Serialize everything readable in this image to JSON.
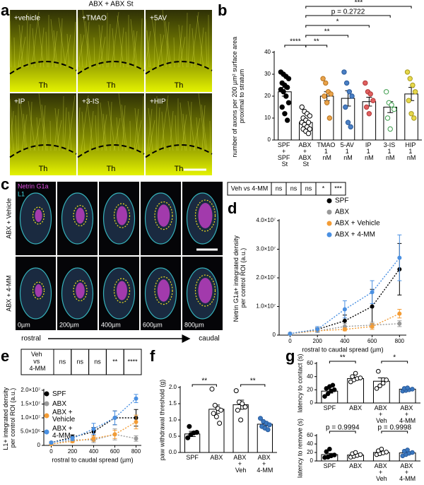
{
  "panel_a": {
    "panel": "a",
    "title": "ABX + ABX St",
    "images": [
      {
        "label": "+vehicle",
        "region": "Th"
      },
      {
        "label": "+TMAO",
        "region": "Th"
      },
      {
        "label": "+5AV",
        "region": "Th"
      },
      {
        "label": "+IP",
        "region": "Th"
      },
      {
        "label": "+3-IS",
        "region": "Th"
      },
      {
        "label": "+HIP",
        "region": "Th"
      }
    ]
  },
  "panel_c": {
    "panel": "c",
    "stains": [
      "Netrin G1a",
      "L1"
    ],
    "rows": [
      "ABX + Vehicle",
      "ABX + 4-MM"
    ],
    "positions": [
      "0µm",
      "200µm",
      "400µm",
      "600µm",
      "800µm"
    ],
    "axis_start": "rostral",
    "axis_end": "caudal"
  },
  "chart_data": [
    {
      "panel": "b",
      "type": "bar",
      "ylabel": "number of axons per 200 µm² surface area proximal to stratum",
      "categories": [
        "SPF + SPF St",
        "ABX + ABX St",
        "TMAO 1 nM",
        "5-AV 1 nM",
        "IP 1 nM",
        "3-IS 1 nM",
        "HIP 1 nM"
      ],
      "values": [
        22,
        8,
        20,
        19,
        17.5,
        15,
        21
      ],
      "errors": [
        2,
        1,
        2,
        3.5,
        2,
        2.5,
        3
      ],
      "points": [
        [
          31,
          30,
          29,
          28,
          26,
          25,
          24,
          23,
          22,
          20,
          17,
          15,
          12,
          9
        ],
        [
          15,
          13,
          12,
          11,
          10,
          9,
          8,
          8,
          7,
          6,
          5,
          5,
          4,
          3
        ],
        [
          28,
          26,
          22,
          21,
          20,
          17,
          10
        ],
        [
          31,
          26,
          22,
          20,
          15,
          8,
          6
        ],
        [
          26,
          22,
          21,
          18,
          15,
          12
        ],
        [
          22,
          17,
          16,
          14,
          10,
          5
        ],
        [
          31,
          28,
          25,
          22,
          18,
          12,
          10
        ]
      ],
      "colors": [
        "#000000",
        "#ffffff",
        "#e8a24a",
        "#4a7fc4",
        "#e06060",
        "#ffffff",
        "#e6d84a"
      ],
      "edge_colors": [
        "#000000",
        "#000000",
        "#b87420",
        "#2a5a9a",
        "#b03838",
        "#3a9b4a",
        "#a89a20"
      ],
      "ylim": [
        0,
        40
      ],
      "yticks": [
        0,
        10,
        20,
        30,
        40
      ],
      "annotations": [
        "****",
        "**",
        "**",
        "*",
        "p = 0.2722",
        "***"
      ]
    },
    {
      "panel": "d",
      "type": "line",
      "ylabel": "Netrin G1a+ integrated density per control ROI (a.u.)",
      "xlabel": "rostral to caudal spread (µm)",
      "stats_table": {
        "header": "Veh vs 4-MM",
        "cells": [
          "ns",
          "ns",
          "ns",
          "*",
          "***"
        ]
      },
      "x": [
        0,
        200,
        400,
        600,
        800
      ],
      "xlim": [
        -80,
        850
      ],
      "xticks": [
        0,
        200,
        400,
        600,
        800
      ],
      "ylim": [
        0,
        40000000
      ],
      "yticks": [
        0,
        {
          "value": 10000000,
          "label": "1.0×10⁷"
        },
        {
          "value": 20000000,
          "label": "2.0×10⁷"
        },
        {
          "value": 30000000,
          "label": "3.0×10⁷"
        },
        {
          "value": 40000000,
          "label": "4.0×10⁷"
        }
      ],
      "series": [
        {
          "name": "SPF",
          "color": "#000000",
          "values": [
            500000,
            2000000,
            5000000,
            10000000,
            23000000
          ],
          "errors": [
            200000,
            500000,
            2000000,
            6000000,
            9000000
          ]
        },
        {
          "name": "ABX",
          "color": "#999999",
          "values": [
            500000,
            1500000,
            3000000,
            3500000,
            4000000
          ],
          "errors": [
            200000,
            500000,
            1000000,
            1000000,
            1000000
          ]
        },
        {
          "name": "ABX + Vehicle",
          "color": "#f39c35",
          "values": [
            500000,
            1500000,
            2000000,
            3000000,
            7500000
          ],
          "errors": [
            200000,
            500000,
            500000,
            1000000,
            1500000
          ]
        },
        {
          "name": "ABX + 4-MM",
          "color": "#4a90e2",
          "values": [
            500000,
            2000000,
            9000000,
            15000000,
            27000000
          ],
          "errors": [
            200000,
            1000000,
            3000000,
            4000000,
            8000000
          ]
        }
      ]
    },
    {
      "panel": "e",
      "type": "line",
      "ylabel": "L1+ integrated density per control ROI (a.u.)",
      "xlabel": "rostral to caudal spread (µm)",
      "stats_table": {
        "header": "Veh vs 4-MM",
        "cells": [
          "ns",
          "ns",
          "ns",
          "**",
          "****"
        ]
      },
      "x": [
        0,
        200,
        400,
        600,
        800
      ],
      "xlim": [
        -70,
        850
      ],
      "xticks": [
        0,
        200,
        400,
        600,
        800
      ],
      "ylim": [
        0,
        20000000
      ],
      "yticks": [
        0,
        {
          "value": 5000000,
          "label": "5.0×10⁶"
        },
        {
          "value": 10000000,
          "label": "1.0×10⁷"
        },
        {
          "value": 15000000,
          "label": "1.5×10⁷"
        },
        {
          "value": 20000000,
          "label": "2.0×10⁷"
        }
      ],
      "series": [
        {
          "name": "SPF",
          "color": "#000000",
          "values": [
            1000000,
            3000000,
            5000000,
            10000000,
            10000000
          ],
          "errors": [
            300000,
            800000,
            1500000,
            2500000,
            3000000
          ]
        },
        {
          "name": "ABX",
          "color": "#999999",
          "values": [
            500000,
            2000000,
            2000000,
            4000000,
            2500000
          ],
          "errors": [
            200000,
            500000,
            1000000,
            2000000,
            1000000
          ]
        },
        {
          "name": "ABX + Vehicle",
          "color": "#f39c35",
          "values": [
            500000,
            1500000,
            2500000,
            4000000,
            8500000
          ],
          "errors": [
            200000,
            500000,
            1000000,
            1500000,
            2500000
          ]
        },
        {
          "name": "ABX + 4-MM",
          "color": "#4a90e2",
          "values": [
            1000000,
            2500000,
            6000000,
            10000000,
            17000000
          ],
          "errors": [
            300000,
            800000,
            2000000,
            2500000,
            1500000
          ]
        }
      ]
    },
    {
      "panel": "f",
      "type": "bar",
      "ylabel": "paw withdrawal threshold (g)",
      "categories": [
        "SPF",
        "ABX",
        "ABX + Veh",
        "ABX + 4-MM"
      ],
      "values": [
        0.57,
        1.33,
        1.47,
        0.87
      ],
      "errors": [
        0.08,
        0.13,
        0.14,
        0.05
      ],
      "points": [
        [
          0.45,
          0.55,
          0.6,
          0.62,
          0.8
        ],
        [
          1.95,
          1.45,
          1.35,
          1.3,
          1.2,
          1.1,
          0.9
        ],
        [
          1.9,
          1.55,
          1.5,
          1.4,
          1.3,
          1.0
        ],
        [
          1.05,
          0.95,
          0.9,
          0.85,
          0.8,
          0.75,
          0.7
        ]
      ],
      "colors": [
        "#000000",
        "#ffffff",
        "#ffffff",
        "#3a78c0"
      ],
      "edge_colors": [
        "#000000",
        "#000000",
        "#000000",
        "#2a5a9a"
      ],
      "ylim": [
        0,
        2
      ],
      "yticks": [
        {
          "value": 0,
          "label": "0.0"
        },
        0.5,
        {
          "value": 1,
          "label": "1.0"
        },
        1.5,
        {
          "value": 2,
          "label": "2.0"
        }
      ],
      "annotations": [
        "**",
        "**"
      ]
    },
    {
      "panel": "g",
      "type": "bar",
      "ylabel": "latency to contact (s)",
      "categories": [
        "SPF",
        "ABX",
        "ABX + Veh",
        "ABX + 4-MM"
      ],
      "values": [
        18,
        37,
        33,
        21
      ],
      "errors": [
        3,
        2,
        5,
        1
      ],
      "points": [
        [
          10,
          14,
          18,
          20,
          22,
          25,
          27
        ],
        [
          32,
          35,
          37,
          38,
          40,
          45
        ],
        [
          22,
          26,
          30,
          35,
          48
        ],
        [
          18,
          19,
          20,
          21,
          22,
          23
        ]
      ],
      "colors": [
        "#000000",
        "#ffffff",
        "#ffffff",
        "#3a78c0"
      ],
      "edge_colors": [
        "#000000",
        "#000000",
        "#000000",
        "#2a5a9a"
      ],
      "ylim": [
        0,
        60
      ],
      "yticks": [
        0,
        20,
        40,
        60
      ],
      "annotations": [
        "**",
        "*"
      ]
    },
    {
      "type": "bar",
      "ylabel": "latency to remove (s)",
      "categories": [
        "SPF",
        "ABX",
        "ABX + Veh",
        "ABX + 4-MM"
      ],
      "values": [
        15,
        14,
        20,
        19
      ],
      "errors": [
        3,
        2,
        2,
        2
      ],
      "points": [
        [
          8,
          9,
          12,
          14,
          22,
          28
        ],
        [
          9,
          11,
          13,
          15,
          17,
          20
        ],
        [
          15,
          17,
          19,
          21,
          24,
          28
        ],
        [
          12,
          15,
          18,
          20,
          23,
          26
        ]
      ],
      "colors": [
        "#000000",
        "#ffffff",
        "#ffffff",
        "#3a78c0"
      ],
      "edge_colors": [
        "#000000",
        "#000000",
        "#000000",
        "#2a5a9a"
      ],
      "ylim": [
        0,
        60
      ],
      "yticks": [
        0,
        20,
        40,
        60
      ],
      "annotations": [
        "p = 0.9994",
        "p = 0.9998"
      ]
    }
  ]
}
